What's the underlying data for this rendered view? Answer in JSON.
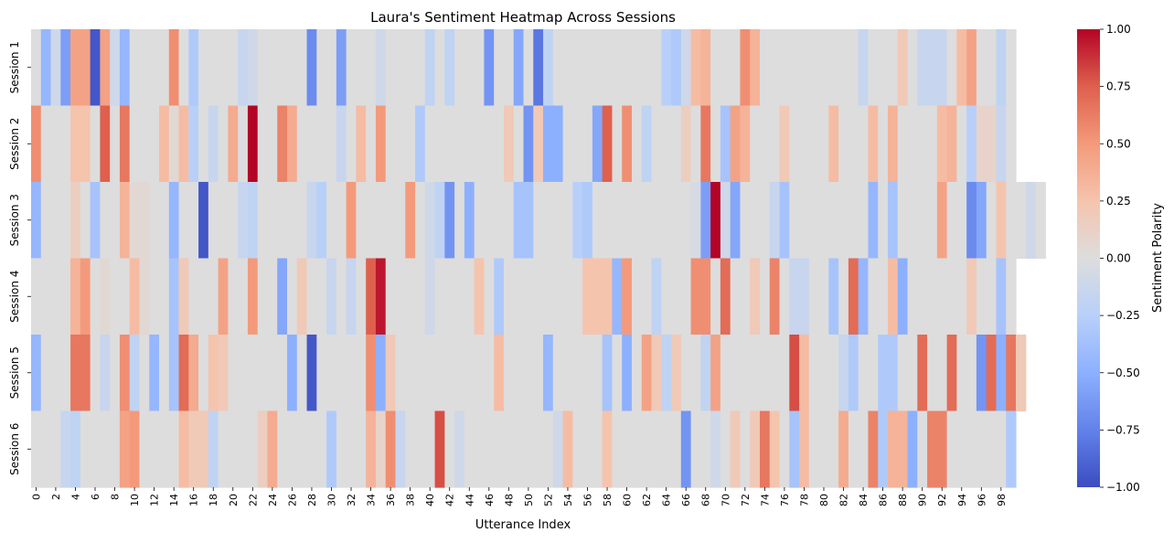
{
  "chart_data": {
    "type": "heatmap",
    "title": "Laura's Sentiment Heatmap Across Sessions",
    "xlabel": "Utterance Index",
    "ylabel": "",
    "rows": [
      "Session 1",
      "Session 2",
      "Session 3",
      "Session 4",
      "Session 5",
      "Session 6"
    ],
    "x_tick_labels": [
      "0",
      "2",
      "4",
      "6",
      "8",
      "10",
      "12",
      "14",
      "16",
      "18",
      "20",
      "22",
      "24",
      "26",
      "28",
      "30",
      "32",
      "34",
      "36",
      "38",
      "40",
      "42",
      "44",
      "46",
      "48",
      "50",
      "52",
      "54",
      "56",
      "58",
      "60",
      "62",
      "64",
      "66",
      "68",
      "70",
      "72",
      "74",
      "76",
      "78",
      "80",
      "82",
      "84",
      "86",
      "88",
      "90",
      "92",
      "94",
      "96",
      "98"
    ],
    "colorbar": {
      "label": "Sentiment Polarity",
      "vmin": -1.0,
      "vmax": 1.0,
      "tick_labels": [
        "1.00",
        "0.75",
        "0.50",
        "0.25",
        "0.00",
        "−0.25",
        "−0.50",
        "−0.75",
        "−1.00"
      ],
      "colormap": "coolwarm"
    },
    "values": [
      [
        0,
        -0.45,
        -0.1,
        -0.6,
        0.45,
        0.45,
        -0.95,
        0.45,
        -0.1,
        -0.45,
        0,
        0,
        0,
        0,
        0.55,
        0,
        -0.3,
        0,
        0,
        0,
        0,
        -0.15,
        -0.1,
        0,
        0,
        0,
        0,
        0,
        -0.7,
        0,
        0,
        -0.6,
        0,
        0,
        0,
        -0.1,
        0,
        0,
        0,
        0,
        -0.2,
        0,
        -0.2,
        0,
        0,
        0,
        -0.65,
        0,
        0,
        -0.55,
        0,
        -0.8,
        -0.2,
        0,
        0,
        0,
        0,
        0,
        0,
        0,
        0,
        0,
        0,
        0,
        -0.25,
        -0.3,
        -0.1,
        0.3,
        0.35,
        0,
        0,
        0,
        0.55,
        0.35,
        0,
        0,
        0,
        0,
        0,
        0,
        0,
        0,
        0,
        0,
        -0.15,
        0,
        0,
        0,
        0.2,
        0,
        -0.15,
        -0.15,
        -0.15,
        0,
        0.3,
        0.45,
        0,
        0,
        -0.2,
        0
      ],
      [
        0.55,
        0,
        0,
        0,
        0.25,
        0.25,
        0,
        0.75,
        0,
        0.65,
        0,
        0,
        0,
        0.3,
        0.05,
        0.3,
        -0.25,
        0,
        -0.15,
        0,
        0.4,
        0,
        1.0,
        0,
        0,
        0.6,
        0.4,
        0,
        0,
        0,
        0,
        -0.15,
        0,
        0.3,
        0,
        0.5,
        0,
        0,
        0,
        -0.3,
        0,
        0,
        0,
        0,
        0,
        0,
        0,
        0,
        0.2,
        0,
        -0.65,
        0.2,
        -0.5,
        -0.5,
        0,
        0,
        0,
        -0.55,
        0.75,
        0,
        0.55,
        0,
        -0.2,
        0,
        0,
        0,
        0.15,
        0,
        0.65,
        0,
        -0.35,
        0.45,
        0.35,
        0,
        0,
        0,
        0.2,
        0,
        0,
        0,
        0,
        0.3,
        0,
        0,
        0,
        0.3,
        0,
        0.35,
        0,
        0,
        0,
        0,
        0.3,
        0.35,
        0,
        -0.25,
        0.1,
        0.1,
        -0.15,
        0
      ],
      [
        -0.45,
        0,
        0,
        0,
        0.15,
        0,
        -0.35,
        0,
        0,
        0.35,
        0.05,
        0.05,
        0,
        0,
        -0.45,
        0,
        0,
        -0.95,
        0,
        0,
        0,
        -0.15,
        -0.2,
        0,
        0,
        0,
        0,
        0,
        -0.15,
        -0.25,
        0,
        0,
        0.5,
        0,
        0,
        0,
        0,
        0,
        0.5,
        0,
        -0.1,
        -0.2,
        -0.65,
        0,
        -0.5,
        0,
        0,
        0,
        0,
        -0.35,
        -0.35,
        0,
        0,
        0,
        0,
        -0.25,
        -0.3,
        0,
        0,
        0,
        0,
        0,
        0,
        0,
        0,
        0,
        0,
        -0.05,
        -0.6,
        1.0,
        -0.1,
        -0.55,
        0,
        0,
        0,
        -0.15,
        -0.35,
        0,
        0,
        0,
        0,
        0,
        0,
        0,
        0,
        -0.45,
        0,
        -0.35,
        0,
        0,
        0,
        0,
        0.45,
        0,
        0,
        -0.7,
        -0.55,
        0,
        0.25,
        0,
        0,
        -0.1,
        0
      ],
      [
        0,
        0,
        0,
        0,
        0.35,
        0.5,
        0,
        0.05,
        0,
        0,
        0.3,
        0.05,
        0,
        0,
        -0.35,
        0.2,
        0,
        0,
        0,
        0.45,
        0,
        0,
        0.5,
        0,
        0,
        -0.55,
        0,
        0.2,
        0,
        0,
        -0.15,
        0,
        -0.15,
        0,
        0.75,
        0.95,
        0,
        0,
        0,
        0,
        -0.1,
        0,
        0,
        0,
        0,
        0.25,
        0,
        -0.3,
        0,
        0,
        0,
        0,
        0,
        0,
        0,
        0,
        0.25,
        0.25,
        0.25,
        -0.45,
        0.5,
        0,
        0,
        -0.2,
        0,
        0,
        0,
        0.55,
        0.55,
        0,
        0.7,
        0,
        0,
        0.2,
        0,
        0.6,
        0,
        -0.15,
        -0.15,
        0,
        0,
        -0.35,
        0,
        0.7,
        -0.45,
        0,
        0,
        0.3,
        -0.5,
        0,
        0,
        0,
        0,
        0,
        0,
        0.2,
        0,
        0,
        -0.35,
        0
      ],
      [
        -0.45,
        0,
        0,
        0,
        0.65,
        0.65,
        0,
        -0.15,
        0,
        0.55,
        -0.2,
        0,
        -0.45,
        0,
        -0.35,
        0.7,
        0.4,
        0,
        0.25,
        0.2,
        0,
        0,
        0,
        0,
        0,
        0,
        -0.5,
        0,
        -0.95,
        0,
        0,
        0,
        0,
        0,
        0.55,
        -0.5,
        0.2,
        0,
        0,
        0,
        0,
        0,
        0,
        0,
        0,
        0,
        0,
        0.3,
        0,
        0,
        0,
        0,
        -0.45,
        0,
        0,
        0,
        0,
        0,
        -0.35,
        0,
        -0.5,
        0,
        0.45,
        0.2,
        -0.2,
        0.2,
        0,
        0,
        -0.2,
        0.45,
        0,
        0,
        0,
        0,
        0,
        0,
        0,
        0.8,
        0.3,
        0,
        0,
        0,
        -0.15,
        -0.3,
        0,
        0,
        -0.3,
        -0.3,
        0,
        0,
        0.7,
        0,
        0,
        0.7,
        0,
        0,
        -0.65,
        0.7,
        -0.5,
        0.65,
        0.2
      ],
      [
        0,
        0,
        0,
        -0.15,
        -0.2,
        0,
        0,
        0,
        0,
        0.45,
        0.5,
        0,
        0,
        0,
        0,
        0.3,
        0.2,
        0.2,
        -0.2,
        0,
        0,
        0,
        0,
        0.15,
        0.4,
        0,
        0,
        0,
        0,
        0,
        -0.3,
        0,
        0,
        0,
        0.35,
        0.1,
        0.55,
        -0.15,
        0,
        0,
        0,
        0.8,
        0,
        -0.1,
        0,
        0,
        0,
        0,
        0,
        0,
        0,
        0,
        0,
        -0.1,
        0.3,
        0,
        0,
        0,
        0.25,
        0,
        0,
        0,
        0,
        0,
        0,
        0,
        -0.65,
        0,
        0,
        -0.1,
        0,
        0.2,
        0,
        0.2,
        0.65,
        0.25,
        0,
        -0.35,
        0.3,
        0,
        0,
        0,
        0.4,
        0,
        0,
        0.6,
        -0.3,
        0.35,
        0.35,
        -0.5,
        0,
        0.6,
        0.6,
        0,
        0,
        0,
        0,
        0,
        0,
        -0.3
      ]
    ]
  }
}
